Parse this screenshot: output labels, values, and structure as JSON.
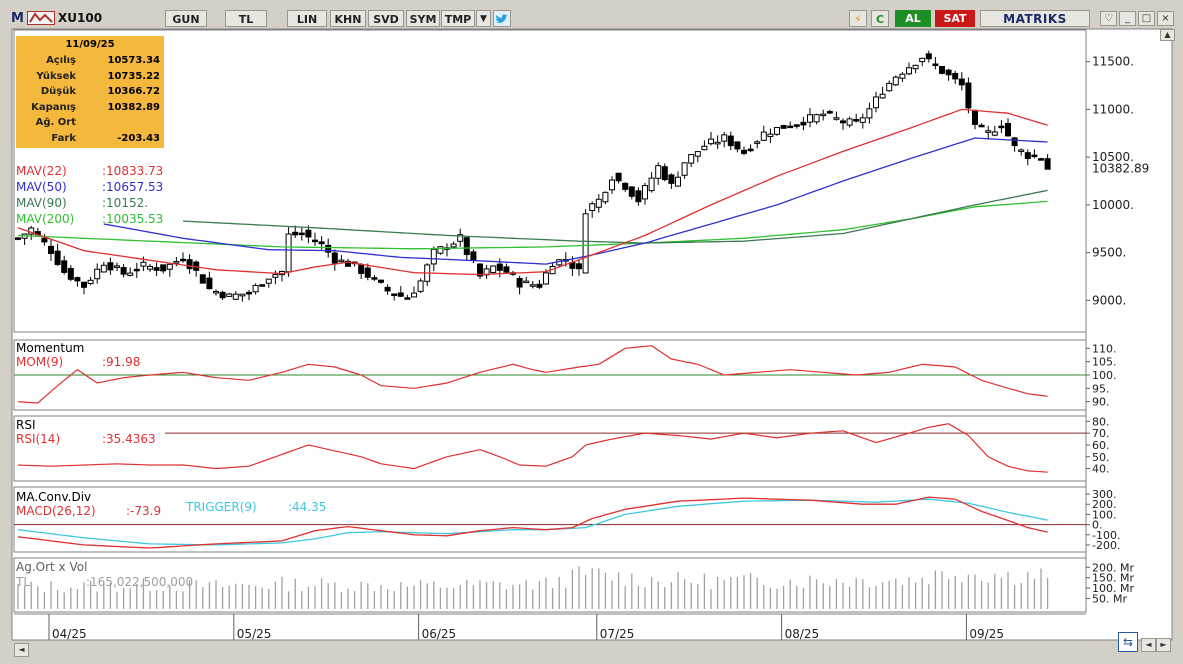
{
  "toolbar": {
    "symbol": "XU100",
    "buttons": [
      "GUN",
      "TL",
      "LIN",
      "KHN",
      "SVD",
      "SYM",
      "TMP"
    ],
    "buy_label": "AL",
    "sell_label": "SAT",
    "brand": "MATRIKS"
  },
  "info_box": {
    "date": "11/09/25",
    "rows": [
      {
        "label": "Açılış",
        "value": "10573.34"
      },
      {
        "label": "Yüksek",
        "value": "10735.22"
      },
      {
        "label": "Düşük",
        "value": "10366.72"
      },
      {
        "label": "Kapanış",
        "value": "10382.89"
      },
      {
        "label": "Ağ. Ort",
        "value": ""
      },
      {
        "label": "Fark",
        "value": "-203.43"
      }
    ]
  },
  "colors": {
    "mav22": "#e03030",
    "mav50": "#3030d0",
    "mav90": "#3a7a50",
    "mav200": "#30c030",
    "mom": "#e03030",
    "rsi": "#e03030",
    "macd": "#e03030",
    "trigger": "#40c8e0",
    "ref_green": "#2a8a2a",
    "ref_red": "#8a2a2a",
    "volume": "#a0a0a0"
  },
  "chart_data": [
    {
      "type": "candlestick",
      "series": [
        {
          "name": "MAV(22)",
          "label": "MAV(22)",
          "value": ":10833.73"
        },
        {
          "name": "MAV(50)",
          "label": "MAV(50)",
          "value": ":10657.53"
        },
        {
          "name": "MAV(90)",
          "label": "MAV(90)",
          "value": ":10152."
        },
        {
          "name": "MAV(200)",
          "label": "MAV(200)",
          "value": ":10035.53"
        }
      ],
      "ylim": [
        8700,
        11800
      ],
      "yticks": [
        "11500.",
        "11000.",
        "10500.",
        "10000.",
        "9500.",
        "9000."
      ],
      "ytick_values": [
        11500,
        11000,
        10500,
        10000,
        9500,
        9000
      ],
      "last_price": "10382.89",
      "last_price_value": 10382.89,
      "x_months": [
        "04/25",
        "05/25",
        "06/25",
        "07/25",
        "08/25",
        "09/25"
      ],
      "close_anchors": [
        [
          0,
          9650
        ],
        [
          2,
          9750
        ],
        [
          5,
          9520
        ],
        [
          7,
          9300
        ],
        [
          10,
          9150
        ],
        [
          13,
          9400
        ],
        [
          16,
          9280
        ],
        [
          19,
          9360
        ],
        [
          22,
          9330
        ],
        [
          25,
          9450
        ],
        [
          27,
          9300
        ],
        [
          29,
          9120
        ],
        [
          32,
          9040
        ],
        [
          35,
          9080
        ],
        [
          38,
          9250
        ],
        [
          40,
          9300
        ],
        [
          41,
          9680
        ],
        [
          43,
          9700
        ],
        [
          46,
          9580
        ],
        [
          48,
          9430
        ],
        [
          51,
          9360
        ],
        [
          53,
          9260
        ],
        [
          56,
          9100
        ],
        [
          59,
          9020
        ],
        [
          61,
          9200
        ],
        [
          63,
          9500
        ],
        [
          65,
          9570
        ],
        [
          67,
          9650
        ],
        [
          68,
          9500
        ],
        [
          70,
          9250
        ],
        [
          72,
          9350
        ],
        [
          74,
          9300
        ],
        [
          76,
          9180
        ],
        [
          79,
          9160
        ],
        [
          81,
          9400
        ],
        [
          83,
          9430
        ],
        [
          85,
          9300
        ],
        [
          86,
          9950
        ],
        [
          88,
          10050
        ],
        [
          90,
          10300
        ],
        [
          92,
          10200
        ],
        [
          94,
          10050
        ],
        [
          97,
          10400
        ],
        [
          99,
          10200
        ],
        [
          101,
          10450
        ],
        [
          104,
          10620
        ],
        [
          107,
          10700
        ],
        [
          110,
          10550
        ],
        [
          113,
          10750
        ],
        [
          116,
          10820
        ],
        [
          119,
          10880
        ],
        [
          122,
          10950
        ],
        [
          125,
          10870
        ],
        [
          127,
          10850
        ],
        [
          129,
          11000
        ],
        [
          131,
          11200
        ],
        [
          133,
          11350
        ],
        [
          135,
          11450
        ],
        [
          137,
          11550
        ],
        [
          139,
          11450
        ],
        [
          141,
          11350
        ],
        [
          143,
          11250
        ],
        [
          145,
          10800
        ],
        [
          147,
          10750
        ],
        [
          149,
          10850
        ],
        [
          151,
          10600
        ],
        [
          153,
          10520
        ],
        [
          155,
          10500
        ],
        [
          156,
          10383
        ]
      ],
      "ma22_anchors": [
        [
          0,
          9760
        ],
        [
          10,
          9520
        ],
        [
          20,
          9420
        ],
        [
          30,
          9320
        ],
        [
          40,
          9280
        ],
        [
          45,
          9350
        ],
        [
          50,
          9400
        ],
        [
          60,
          9290
        ],
        [
          70,
          9270
        ],
        [
          80,
          9300
        ],
        [
          86,
          9450
        ],
        [
          95,
          9680
        ],
        [
          105,
          10000
        ],
        [
          115,
          10300
        ],
        [
          125,
          10560
        ],
        [
          135,
          10800
        ],
        [
          143,
          11000
        ],
        [
          150,
          10960
        ],
        [
          156,
          10834
        ]
      ],
      "ma50_anchors": [
        [
          13,
          9800
        ],
        [
          25,
          9650
        ],
        [
          38,
          9530
        ],
        [
          48,
          9520
        ],
        [
          58,
          9450
        ],
        [
          68,
          9420
        ],
        [
          80,
          9380
        ],
        [
          86,
          9460
        ],
        [
          95,
          9600
        ],
        [
          105,
          9800
        ],
        [
          115,
          10000
        ],
        [
          125,
          10250
        ],
        [
          135,
          10480
        ],
        [
          145,
          10700
        ],
        [
          156,
          10658
        ]
      ],
      "ma90_anchors": [
        [
          25,
          9830
        ],
        [
          45,
          9760
        ],
        [
          65,
          9680
        ],
        [
          85,
          9620
        ],
        [
          95,
          9600
        ],
        [
          110,
          9620
        ],
        [
          125,
          9700
        ],
        [
          135,
          9850
        ],
        [
          145,
          10000
        ],
        [
          156,
          10152
        ]
      ],
      "ma200_anchors": [
        [
          0,
          9680
        ],
        [
          20,
          9620
        ],
        [
          40,
          9560
        ],
        [
          60,
          9540
        ],
        [
          80,
          9560
        ],
        [
          95,
          9600
        ],
        [
          110,
          9650
        ],
        [
          125,
          9740
        ],
        [
          135,
          9850
        ],
        [
          145,
          9980
        ],
        [
          156,
          10036
        ]
      ]
    },
    {
      "type": "line",
      "title": "Momentum",
      "series": [
        {
          "name": "MOM(9)",
          "label": "MOM(9)",
          "value": ":91.98"
        }
      ],
      "ylim": [
        88,
        112
      ],
      "yticks": [
        "110.",
        "105.",
        "100.",
        "95.",
        "90."
      ],
      "ytick_values": [
        110,
        105,
        100,
        95,
        90
      ],
      "ref": 100,
      "anchors": [
        [
          0,
          90
        ],
        [
          3,
          89.5
        ],
        [
          6,
          96
        ],
        [
          9,
          102
        ],
        [
          12,
          97
        ],
        [
          16,
          99
        ],
        [
          20,
          100
        ],
        [
          25,
          101
        ],
        [
          30,
          99
        ],
        [
          35,
          98
        ],
        [
          40,
          101
        ],
        [
          44,
          104
        ],
        [
          48,
          103
        ],
        [
          52,
          100
        ],
        [
          55,
          96
        ],
        [
          60,
          95
        ],
        [
          65,
          97
        ],
        [
          70,
          101
        ],
        [
          75,
          104
        ],
        [
          78,
          102
        ],
        [
          80,
          101
        ],
        [
          85,
          103
        ],
        [
          88,
          104
        ],
        [
          92,
          110
        ],
        [
          96,
          111
        ],
        [
          99,
          106
        ],
        [
          103,
          104
        ],
        [
          107,
          100
        ],
        [
          112,
          101
        ],
        [
          117,
          102
        ],
        [
          122,
          101
        ],
        [
          127,
          100
        ],
        [
          132,
          101
        ],
        [
          137,
          104
        ],
        [
          142,
          103
        ],
        [
          146,
          98
        ],
        [
          150,
          95
        ],
        [
          153,
          93
        ],
        [
          156,
          92
        ]
      ]
    },
    {
      "type": "line",
      "title": "RSI",
      "series": [
        {
          "name": "RSI(14)",
          "label": "RSI(14)",
          "value": ":35.4363"
        }
      ],
      "ylim": [
        32,
        82
      ],
      "yticks": [
        "80.",
        "70.",
        "60.",
        "50.",
        "40."
      ],
      "ytick_values": [
        80,
        70,
        60,
        50,
        40
      ],
      "ref": 70,
      "anchors": [
        [
          0,
          43
        ],
        [
          5,
          42
        ],
        [
          10,
          43
        ],
        [
          15,
          44
        ],
        [
          20,
          43
        ],
        [
          25,
          43
        ],
        [
          30,
          40
        ],
        [
          35,
          42
        ],
        [
          40,
          52
        ],
        [
          44,
          60
        ],
        [
          48,
          55
        ],
        [
          52,
          50
        ],
        [
          55,
          44
        ],
        [
          60,
          40
        ],
        [
          65,
          50
        ],
        [
          70,
          56
        ],
        [
          73,
          50
        ],
        [
          76,
          43
        ],
        [
          80,
          42
        ],
        [
          84,
          50
        ],
        [
          86,
          60
        ],
        [
          90,
          65
        ],
        [
          95,
          70
        ],
        [
          100,
          68
        ],
        [
          105,
          65
        ],
        [
          110,
          70
        ],
        [
          115,
          66
        ],
        [
          120,
          70
        ],
        [
          125,
          72
        ],
        [
          127,
          68
        ],
        [
          130,
          62
        ],
        [
          135,
          70
        ],
        [
          138,
          75
        ],
        [
          141,
          78
        ],
        [
          144,
          68
        ],
        [
          147,
          50
        ],
        [
          150,
          42
        ],
        [
          153,
          38
        ],
        [
          156,
          37
        ]
      ]
    },
    {
      "type": "line",
      "title": "MA.Conv.Div",
      "series": [
        {
          "name": "MACD(26,12)",
          "label": "MACD(26,12)",
          "value": ":-73.9"
        },
        {
          "name": "TRIGGER(9)",
          "label": "TRIGGER(9)",
          "value": ":44.35"
        }
      ],
      "ylim": [
        -240,
        340
      ],
      "yticks": [
        "300.",
        "200.",
        "100.",
        "0.",
        "-100.",
        "-200."
      ],
      "ytick_values": [
        300,
        200,
        100,
        0,
        -100,
        -200
      ],
      "ref": 0,
      "macd_anchors": [
        [
          0,
          -120
        ],
        [
          10,
          -200
        ],
        [
          20,
          -230
        ],
        [
          30,
          -190
        ],
        [
          40,
          -160
        ],
        [
          45,
          -60
        ],
        [
          50,
          -20
        ],
        [
          55,
          -60
        ],
        [
          60,
          -100
        ],
        [
          65,
          -110
        ],
        [
          70,
          -60
        ],
        [
          75,
          -30
        ],
        [
          80,
          -50
        ],
        [
          84,
          -30
        ],
        [
          87,
          60
        ],
        [
          92,
          150
        ],
        [
          100,
          230
        ],
        [
          110,
          260
        ],
        [
          120,
          240
        ],
        [
          128,
          200
        ],
        [
          133,
          200
        ],
        [
          138,
          270
        ],
        [
          142,
          250
        ],
        [
          146,
          130
        ],
        [
          150,
          40
        ],
        [
          153,
          -30
        ],
        [
          156,
          -74
        ]
      ],
      "trigger_anchors": [
        [
          0,
          -50
        ],
        [
          10,
          -130
        ],
        [
          20,
          -190
        ],
        [
          30,
          -200
        ],
        [
          40,
          -180
        ],
        [
          45,
          -140
        ],
        [
          50,
          -80
        ],
        [
          55,
          -70
        ],
        [
          60,
          -80
        ],
        [
          65,
          -90
        ],
        [
          70,
          -70
        ],
        [
          75,
          -50
        ],
        [
          80,
          -50
        ],
        [
          86,
          -30
        ],
        [
          92,
          100
        ],
        [
          100,
          180
        ],
        [
          110,
          230
        ],
        [
          120,
          240
        ],
        [
          130,
          220
        ],
        [
          138,
          250
        ],
        [
          144,
          210
        ],
        [
          150,
          120
        ],
        [
          156,
          44
        ]
      ]
    },
    {
      "type": "bar",
      "title": "Ag.Ort x Vol",
      "series": [
        {
          "name": "TL",
          "label": "TL",
          "value": ":165,022,500,000"
        }
      ],
      "ylim": [
        0,
        230
      ],
      "yticks": [
        "200. Mr",
        "150. Mr",
        "100. Mr",
        "50. Mr"
      ],
      "ytick_values": [
        200,
        150,
        100,
        50
      ],
      "unit": "Mr",
      "anchors": [
        [
          0,
          105
        ],
        [
          10,
          110
        ],
        [
          20,
          115
        ],
        [
          30,
          110
        ],
        [
          40,
          120
        ],
        [
          50,
          115
        ],
        [
          60,
          110
        ],
        [
          70,
          115
        ],
        [
          80,
          120
        ],
        [
          86,
          170
        ],
        [
          95,
          140
        ],
        [
          105,
          135
        ],
        [
          115,
          135
        ],
        [
          125,
          140
        ],
        [
          135,
          140
        ],
        [
          142,
          180
        ],
        [
          150,
          160
        ],
        [
          156,
          165
        ]
      ]
    }
  ]
}
